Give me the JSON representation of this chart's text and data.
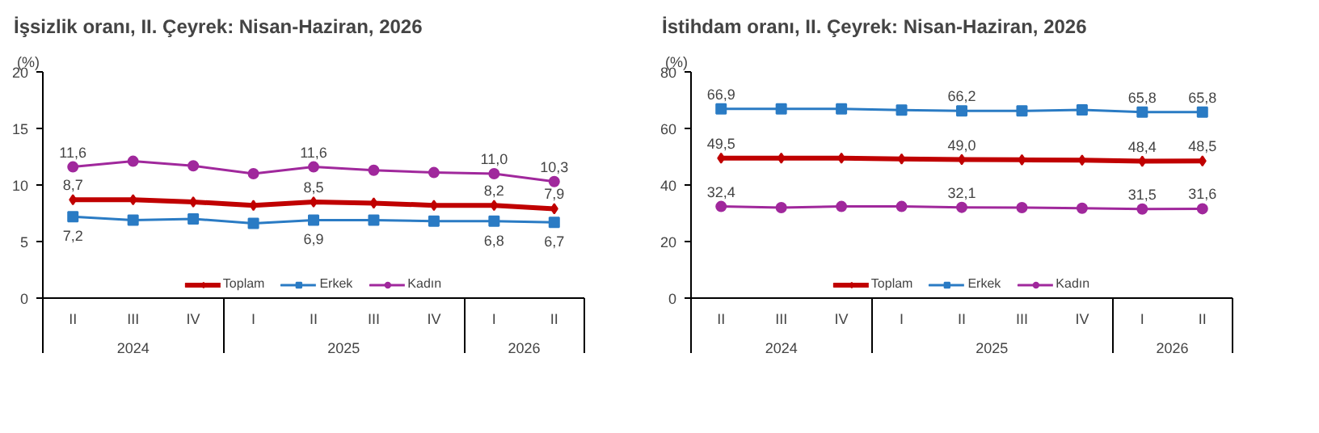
{
  "chart_data": [
    {
      "type": "line",
      "title": "İşsizlik oranı, II. Çeyrek: Nisan-Haziran, 2026",
      "ylabel": "(%)",
      "categories": [
        "II",
        "III",
        "IV",
        "I",
        "II",
        "III",
        "IV",
        "I",
        "II"
      ],
      "annotations": [
        "2024",
        "2025",
        "2026"
      ],
      "ylim": [
        0,
        20
      ],
      "yticks": [
        0,
        5,
        10,
        15,
        20
      ],
      "grid": false,
      "legend": "bottom",
      "line_style": "solid",
      "series": [
        {
          "name": "Toplam",
          "color": "#c00000",
          "marker": "diamond",
          "values": [
            8.7,
            8.7,
            8.5,
            8.2,
            8.5,
            8.4,
            8.2,
            8.2,
            7.9
          ],
          "value_labels": [
            "8,7",
            null,
            null,
            null,
            "8,5",
            null,
            null,
            "8,2",
            "7,9"
          ]
        },
        {
          "name": "Erkek",
          "color": "#2a7bc4",
          "marker": "square",
          "values": [
            7.2,
            6.9,
            7.0,
            6.6,
            6.9,
            6.9,
            6.8,
            6.8,
            6.7
          ],
          "value_labels": [
            "7,2",
            null,
            null,
            null,
            "6,9",
            null,
            null,
            "6,8",
            "6,7"
          ]
        },
        {
          "name": "Kadın",
          "color": "#a0289c",
          "marker": "circle",
          "values": [
            11.6,
            12.1,
            11.7,
            11.0,
            11.6,
            11.3,
            11.1,
            11.0,
            10.3
          ],
          "value_labels": [
            "11,6",
            null,
            null,
            null,
            "11,6",
            null,
            null,
            "11,0",
            "10,3"
          ]
        }
      ]
    },
    {
      "type": "line",
      "title": "İstihdam oranı, II. Çeyrek: Nisan-Haziran, 2026",
      "ylabel": "(%)",
      "categories": [
        "II",
        "III",
        "IV",
        "I",
        "II",
        "III",
        "IV",
        "I",
        "II"
      ],
      "annotations": [
        "2024",
        "2025",
        "2026"
      ],
      "ylim": [
        0,
        80
      ],
      "yticks": [
        0,
        20,
        40,
        60,
        80
      ],
      "grid": false,
      "legend": "bottom",
      "line_style": "solid",
      "series": [
        {
          "name": "Toplam",
          "color": "#c00000",
          "marker": "diamond",
          "values": [
            49.5,
            49.5,
            49.5,
            49.2,
            49.0,
            48.9,
            48.8,
            48.4,
            48.5
          ],
          "value_labels": [
            "49,5",
            null,
            null,
            null,
            "49,0",
            null,
            null,
            "48,4",
            "48,5"
          ]
        },
        {
          "name": "Erkek",
          "color": "#2a7bc4",
          "marker": "square",
          "values": [
            66.9,
            66.9,
            66.9,
            66.5,
            66.2,
            66.2,
            66.6,
            65.8,
            65.8
          ],
          "value_labels": [
            "66,9",
            null,
            null,
            null,
            "66,2",
            null,
            null,
            "65,8",
            "65,8"
          ]
        },
        {
          "name": "Kadın",
          "color": "#a0289c",
          "marker": "circle",
          "values": [
            32.4,
            32.0,
            32.4,
            32.4,
            32.1,
            32.0,
            31.8,
            31.5,
            31.6
          ],
          "value_labels": [
            "32,4",
            null,
            null,
            null,
            "32,1",
            null,
            null,
            "31,5",
            "31,6"
          ]
        }
      ]
    }
  ]
}
